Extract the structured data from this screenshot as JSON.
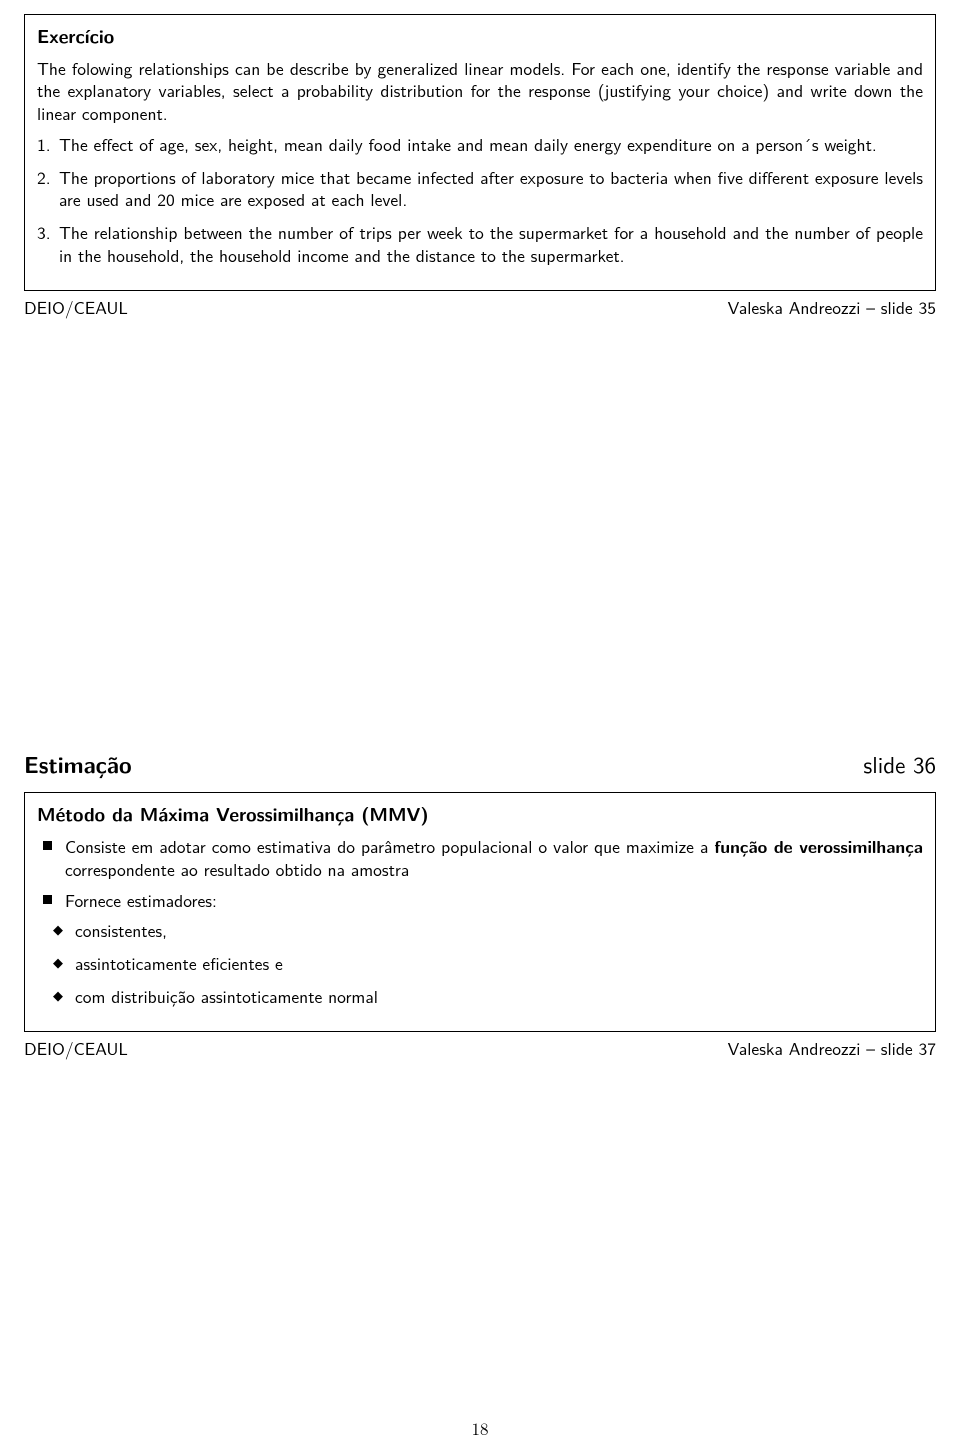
{
  "slide35": {
    "title": "Exercício",
    "intro": "The folowing relationships can be describe by generalized linear models. For each one, identify the response variable and the explanatory variables, select a probability distribution for the response (justifying your choice) and write down the linear component.",
    "items": [
      "The effect of age, sex, height, mean daily food intake and mean daily energy expenditure on a person´s weight.",
      "The proportions of laboratory mice that became infected after exposure to bacteria when five different exposure levels are used and 20 mice are exposed at each level.",
      "The relationship between the number of trips per week to the supermarket for a household and the number of people in the household, the household income and the distance to the supermarket."
    ],
    "footer_left": "DEIO/CEAUL",
    "footer_right": "Valeska Andreozzi – slide 35"
  },
  "section": {
    "title": "Estimação",
    "slide_label": "slide 36"
  },
  "slide37": {
    "title": "Método da Máxima Verossimilhança (MMV)",
    "b1_pre": "Consiste em adotar como estimativa do parâmetro populacional o valor que maximize a ",
    "b1_bold": "função de verossimilhança",
    "b1_post": " correspondente ao resultado obtido na amostra",
    "b2": "Fornece estimadores:",
    "sub": [
      "consistentes,",
      "assintoticamente eficientes e",
      "com distribuição assintoticamente normal"
    ],
    "footer_left": "DEIO/CEAUL",
    "footer_right": "Valeska Andreozzi – slide 37"
  },
  "page_number": "18"
}
